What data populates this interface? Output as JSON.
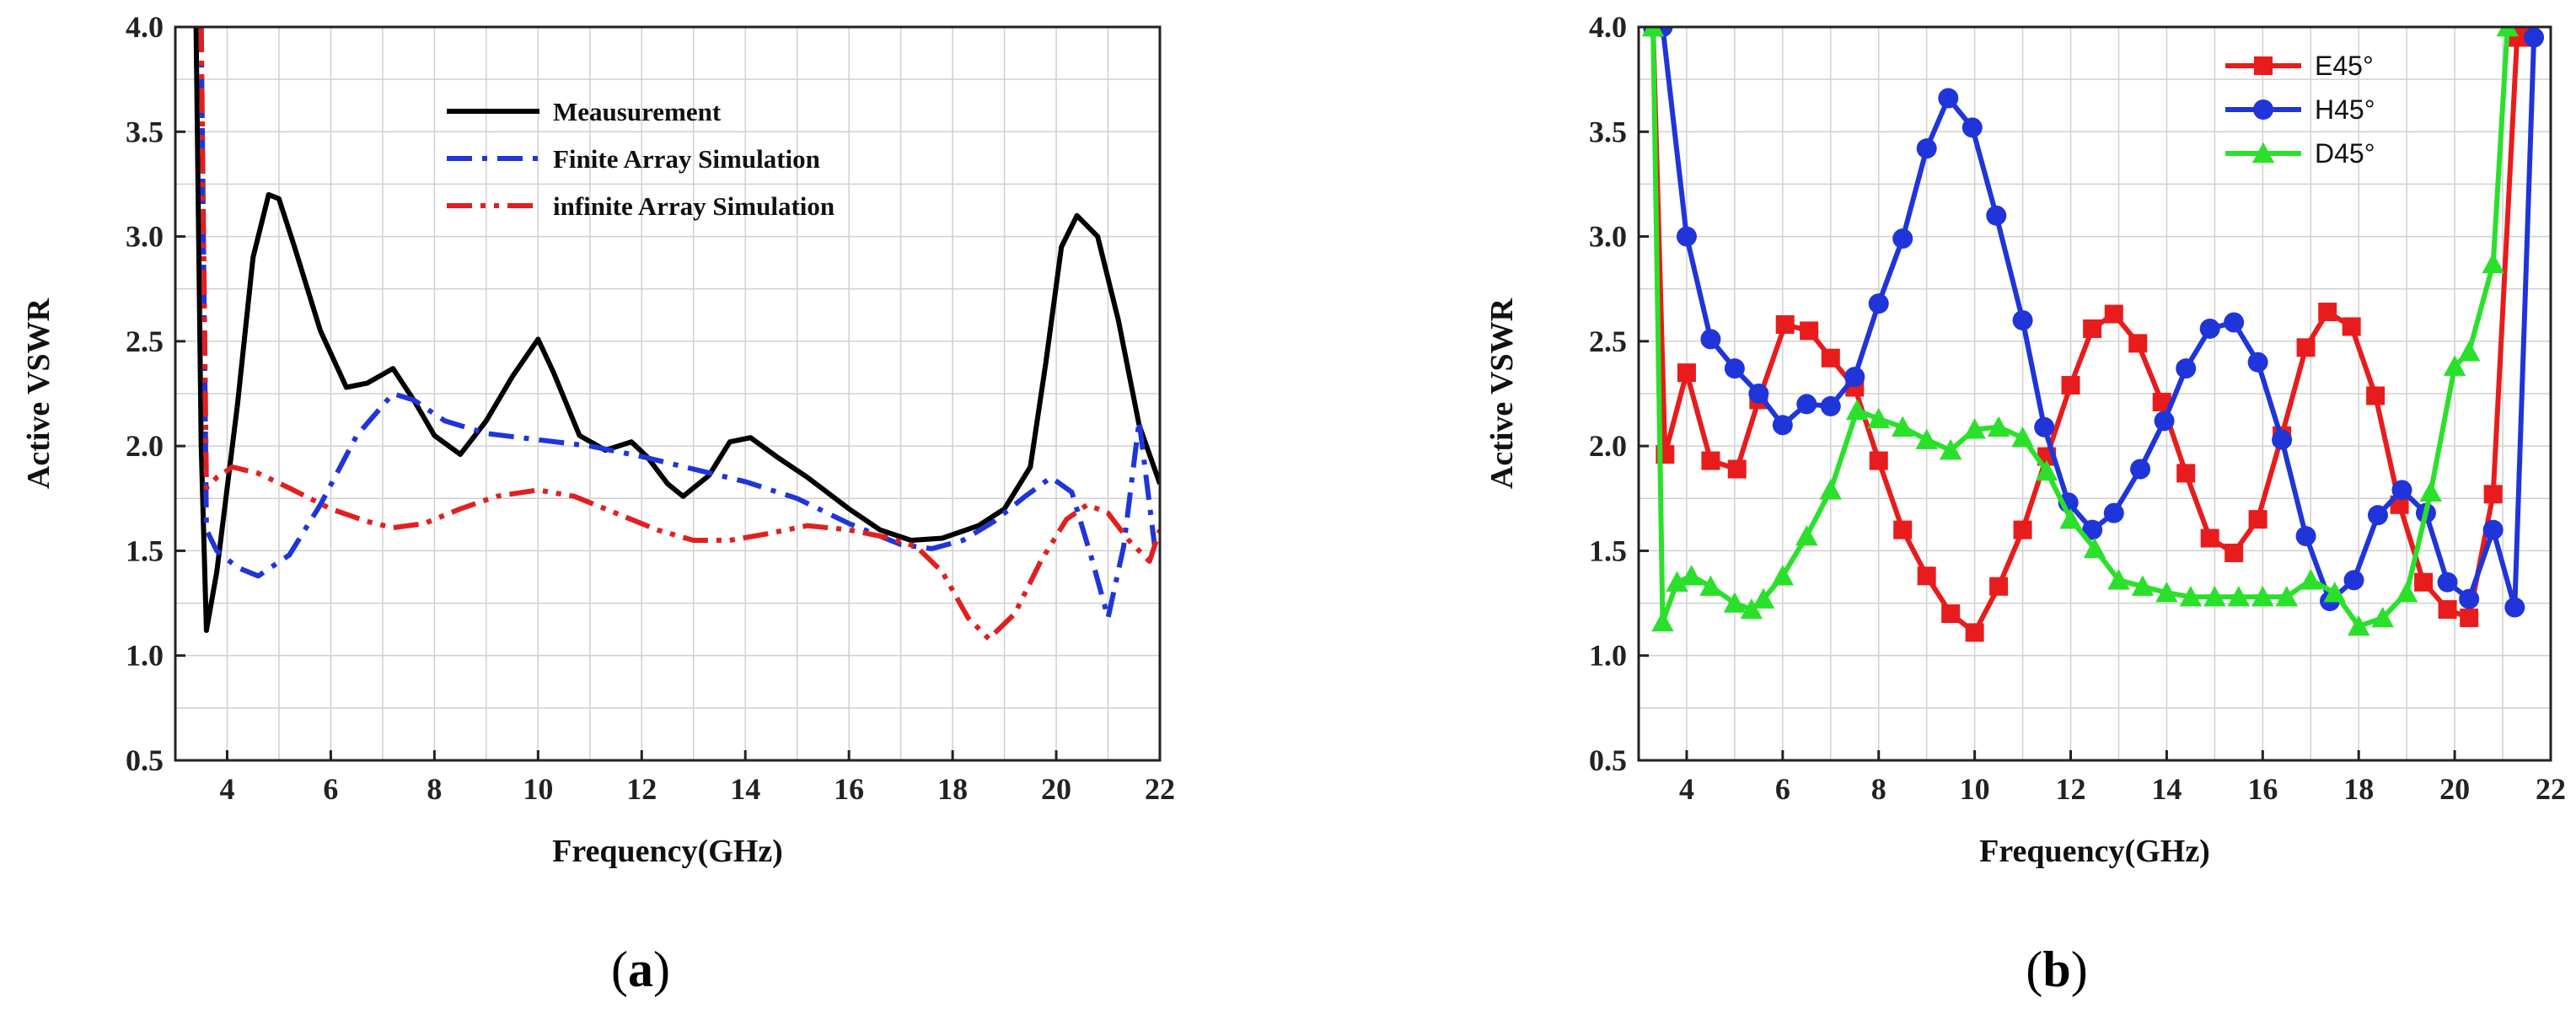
{
  "chart_data": [
    {
      "type": "line",
      "panel_label": "a",
      "title": "",
      "xlabel": "Frequency(GHz)",
      "ylabel": "Active VSWR",
      "xlim": [
        3,
        22
      ],
      "ylim": [
        0.5,
        4.0
      ],
      "xticks": [
        4,
        6,
        8,
        10,
        12,
        14,
        16,
        18,
        20,
        22
      ],
      "yticks": [
        0.5,
        1.0,
        1.5,
        2.0,
        2.5,
        3.0,
        3.5,
        4.0
      ],
      "grid": true,
      "legend_position": "top-center",
      "series": [
        {
          "name": "Meausurement",
          "color": "#000000",
          "style": "solid",
          "x": [
            3.4,
            3.5,
            3.6,
            3.8,
            4.2,
            4.5,
            4.8,
            5.0,
            5.3,
            5.8,
            6.3,
            6.7,
            7.2,
            7.6,
            8.0,
            8.5,
            9.0,
            9.5,
            10.0,
            10.3,
            10.8,
            11.3,
            11.8,
            12.1,
            12.5,
            12.8,
            13.3,
            13.7,
            14.1,
            14.6,
            15.2,
            16.0,
            16.6,
            17.2,
            17.8,
            18.5,
            19.0,
            19.5,
            19.8,
            20.1,
            20.4,
            20.8,
            21.2,
            21.6,
            22.0
          ],
          "y": [
            4.0,
            2.0,
            1.12,
            1.4,
            2.2,
            2.9,
            3.2,
            3.18,
            2.95,
            2.55,
            2.28,
            2.3,
            2.37,
            2.22,
            2.05,
            1.96,
            2.12,
            2.33,
            2.51,
            2.35,
            2.05,
            1.98,
            2.02,
            1.95,
            1.82,
            1.76,
            1.86,
            2.02,
            2.04,
            1.95,
            1.85,
            1.7,
            1.6,
            1.55,
            1.56,
            1.62,
            1.7,
            1.9,
            2.4,
            2.95,
            3.1,
            3.0,
            2.6,
            2.1,
            1.82
          ]
        },
        {
          "name": "Finite Array Simulation",
          "color": "#1f35d9",
          "style": "dashdot",
          "x": [
            3.5,
            3.6,
            3.8,
            4.2,
            4.6,
            5.2,
            5.8,
            6.5,
            7.2,
            7.6,
            8.2,
            9.0,
            10.0,
            11.0,
            12.0,
            13.0,
            14.0,
            15.0,
            16.0,
            17.0,
            17.6,
            18.2,
            18.8,
            19.4,
            19.9,
            20.3,
            20.7,
            21.0,
            21.3,
            21.6,
            21.9
          ],
          "y": [
            4.0,
            1.6,
            1.5,
            1.42,
            1.38,
            1.48,
            1.72,
            2.05,
            2.25,
            2.22,
            2.12,
            2.06,
            2.03,
            2.0,
            1.95,
            1.89,
            1.83,
            1.75,
            1.63,
            1.53,
            1.51,
            1.55,
            1.64,
            1.76,
            1.85,
            1.78,
            1.45,
            1.18,
            1.52,
            2.12,
            1.52
          ]
        },
        {
          "name": "infinite Array Simulation",
          "color": "#e02020",
          "style": "dashdotdot",
          "x": [
            3.5,
            3.6,
            3.8,
            4.1,
            4.6,
            5.2,
            6.0,
            6.7,
            7.2,
            7.8,
            8.5,
            9.2,
            10.0,
            10.7,
            11.5,
            12.3,
            13.0,
            13.7,
            14.4,
            15.2,
            16.0,
            16.8,
            17.3,
            17.8,
            18.3,
            18.7,
            19.2,
            19.7,
            20.2,
            20.6,
            21.0,
            21.4,
            21.8,
            22.0
          ],
          "y": [
            4.0,
            1.8,
            1.85,
            1.9,
            1.87,
            1.8,
            1.7,
            1.64,
            1.61,
            1.63,
            1.7,
            1.76,
            1.79,
            1.76,
            1.68,
            1.6,
            1.55,
            1.55,
            1.58,
            1.62,
            1.6,
            1.56,
            1.52,
            1.4,
            1.18,
            1.08,
            1.2,
            1.45,
            1.65,
            1.72,
            1.68,
            1.55,
            1.45,
            1.6
          ]
        }
      ]
    },
    {
      "type": "line",
      "panel_label": "b",
      "title": "",
      "xlabel": "Frequency(GHz)",
      "ylabel": "Active VSWR",
      "xlim": [
        3,
        22
      ],
      "ylim": [
        0.5,
        4.0
      ],
      "xticks": [
        4,
        6,
        8,
        10,
        12,
        14,
        16,
        18,
        20,
        22
      ],
      "yticks": [
        0.5,
        1.0,
        1.5,
        2.0,
        2.5,
        3.0,
        3.5,
        4.0
      ],
      "grid": true,
      "legend_position": "top-right",
      "series": [
        {
          "name": "E45°",
          "color": "#e81c1c",
          "marker": "square",
          "x": [
            3.3,
            3.55,
            4.0,
            4.5,
            5.05,
            5.5,
            6.05,
            6.55,
            7.0,
            7.5,
            8.0,
            8.5,
            9.0,
            9.5,
            10.0,
            10.5,
            11.0,
            11.5,
            12.0,
            12.45,
            12.9,
            13.4,
            13.9,
            14.4,
            14.9,
            15.4,
            15.9,
            16.4,
            16.9,
            17.35,
            17.85,
            18.35,
            18.85,
            19.35,
            19.85,
            20.3,
            20.8,
            21.3,
            21.55
          ],
          "y": [
            4.0,
            1.96,
            2.35,
            1.93,
            1.89,
            2.22,
            2.58,
            2.55,
            2.42,
            2.28,
            1.93,
            1.6,
            1.38,
            1.2,
            1.11,
            1.33,
            1.6,
            1.95,
            2.29,
            2.56,
            2.63,
            2.49,
            2.21,
            1.87,
            1.56,
            1.49,
            1.65,
            2.05,
            2.47,
            2.64,
            2.57,
            2.24,
            1.72,
            1.35,
            1.22,
            1.18,
            1.77,
            3.95,
            3.95
          ]
        },
        {
          "name": "H45°",
          "color": "#1f35d9",
          "marker": "circle",
          "x": [
            3.3,
            3.5,
            4.0,
            4.5,
            5.0,
            5.5,
            6.0,
            6.5,
            7.0,
            7.5,
            8.0,
            8.5,
            9.0,
            9.45,
            9.95,
            10.45,
            11.0,
            11.45,
            11.95,
            12.45,
            12.9,
            13.45,
            13.95,
            14.4,
            14.9,
            15.4,
            15.9,
            16.4,
            16.9,
            17.4,
            17.9,
            18.4,
            18.9,
            19.4,
            19.85,
            20.3,
            20.8,
            21.25,
            21.65
          ],
          "y": [
            4.0,
            4.0,
            3.0,
            2.51,
            2.37,
            2.25,
            2.1,
            2.2,
            2.19,
            2.33,
            2.68,
            2.99,
            3.42,
            3.66,
            3.52,
            3.1,
            2.6,
            2.09,
            1.73,
            1.6,
            1.68,
            1.89,
            2.12,
            2.37,
            2.56,
            2.59,
            2.4,
            2.03,
            1.57,
            1.26,
            1.36,
            1.67,
            1.79,
            1.68,
            1.35,
            1.27,
            1.6,
            1.23,
            3.95
          ]
        },
        {
          "name": "D45°",
          "color": "#2be02b",
          "marker": "triangle",
          "x": [
            3.3,
            3.5,
            3.8,
            4.1,
            4.5,
            5.0,
            5.35,
            5.6,
            6.0,
            6.5,
            7.0,
            7.55,
            8.0,
            8.5,
            9.0,
            9.5,
            10.0,
            10.5,
            11.0,
            11.5,
            12.0,
            12.5,
            13.0,
            13.5,
            14.0,
            14.5,
            15.0,
            15.5,
            16.0,
            16.5,
            17.0,
            17.5,
            18.0,
            18.5,
            19.0,
            19.5,
            20.0,
            20.3,
            20.8,
            21.1
          ],
          "y": [
            4.0,
            1.16,
            1.35,
            1.38,
            1.33,
            1.25,
            1.22,
            1.27,
            1.38,
            1.57,
            1.79,
            2.17,
            2.13,
            2.09,
            2.03,
            1.98,
            2.08,
            2.09,
            2.04,
            1.88,
            1.65,
            1.51,
            1.36,
            1.33,
            1.3,
            1.28,
            1.28,
            1.28,
            1.28,
            1.28,
            1.36,
            1.3,
            1.14,
            1.18,
            1.3,
            1.78,
            2.38,
            2.45,
            2.87,
            4.0
          ]
        }
      ]
    }
  ]
}
